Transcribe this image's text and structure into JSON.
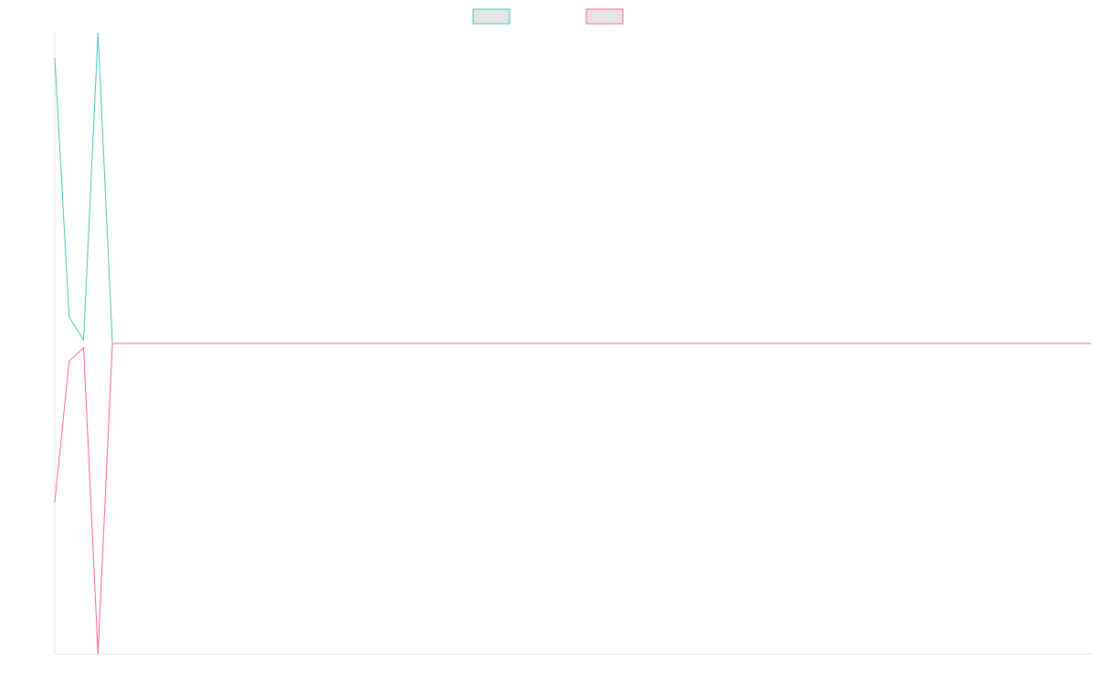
{
  "chart_data": {
    "type": "line",
    "title": "",
    "xlabel": "",
    "ylabel": "",
    "grid": false,
    "legend_position": "top-center",
    "xlim": [
      0,
      72
    ],
    "ylim": [
      -0.44,
      0.44
    ],
    "series": [
      {
        "color": "#4bc0c0",
        "x": [
          0,
          1,
          2,
          3,
          4,
          72
        ],
        "values": [
          0.405,
          0.037,
          0.005,
          0.44,
          0.0,
          0.0
        ]
      },
      {
        "color": "#ff6384",
        "x": [
          0,
          1,
          2,
          3,
          4,
          72
        ],
        "values": [
          -0.225,
          -0.025,
          -0.006,
          -0.44,
          0.0,
          0.0
        ]
      }
    ]
  }
}
